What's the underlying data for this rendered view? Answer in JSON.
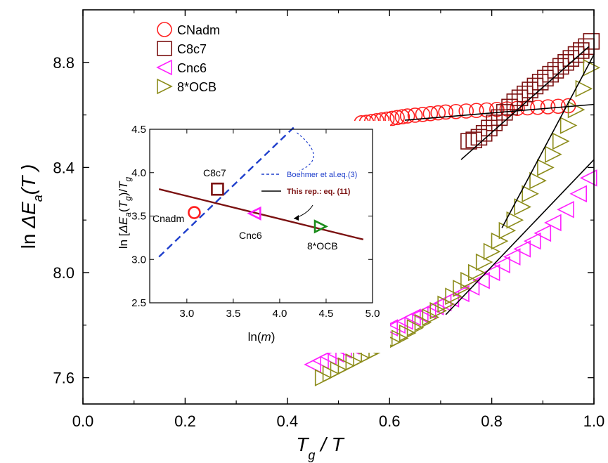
{
  "chart_data": [
    {
      "type": "scatter",
      "xlabel_main": "T",
      "xlabel_sub": "g",
      "xlabel_tail": "/ T",
      "ylabel_main": "ln ΔE",
      "ylabel_sub": "a",
      "ylabel_tail": "(T )",
      "xlim": [
        0.0,
        1.0
      ],
      "ylim": [
        7.5,
        9.0
      ],
      "xticks": [
        0.0,
        0.2,
        0.4,
        0.6,
        0.8,
        1.0
      ],
      "xtick_labels": [
        "0.0",
        "0.2",
        "0.4",
        "0.6",
        "0.8",
        "1.0"
      ],
      "yticks": [
        7.6,
        8.0,
        8.4,
        8.8
      ],
      "ytick_labels": [
        "7.6",
        "8.0",
        "8.4",
        "8.8"
      ],
      "legend_position": "top-left",
      "series": [
        {
          "name": "CNadm",
          "marker": "circle",
          "color": "#ff2020",
          "x": [
            0.545,
            0.555,
            0.565,
            0.575,
            0.585,
            0.595,
            0.605,
            0.615,
            0.625,
            0.635,
            0.65,
            0.665,
            0.68,
            0.695,
            0.71,
            0.73,
            0.75,
            0.77,
            0.79,
            0.81,
            0.83,
            0.85,
            0.87,
            0.89,
            0.91,
            0.93,
            0.95
          ],
          "y": [
            8.57,
            8.572,
            8.575,
            8.578,
            8.581,
            8.584,
            8.587,
            8.59,
            8.593,
            8.596,
            8.599,
            8.602,
            8.605,
            8.608,
            8.611,
            8.613,
            8.615,
            8.617,
            8.619,
            8.621,
            8.623,
            8.625,
            8.627,
            8.629,
            8.631,
            8.633,
            8.635
          ]
        },
        {
          "name": "C8c7",
          "marker": "square",
          "color": "#7b1111",
          "x": [
            0.755,
            0.765,
            0.775,
            0.785,
            0.795,
            0.805,
            0.815,
            0.825,
            0.835,
            0.845,
            0.855,
            0.865,
            0.875,
            0.885,
            0.895,
            0.905,
            0.915,
            0.925,
            0.935,
            0.945,
            0.955,
            0.965,
            0.975,
            0.985,
            0.995
          ],
          "y": [
            8.5,
            8.505,
            8.515,
            8.53,
            8.55,
            8.57,
            8.59,
            8.61,
            8.63,
            8.65,
            8.665,
            8.68,
            8.695,
            8.71,
            8.725,
            8.74,
            8.755,
            8.77,
            8.785,
            8.8,
            8.815,
            8.83,
            8.845,
            8.86,
            8.88
          ]
        },
        {
          "name": "Cnc6",
          "marker": "triangle-left",
          "color": "#ff20ff",
          "x": [
            0.45,
            0.465,
            0.48,
            0.495,
            0.51,
            0.525,
            0.54,
            0.555,
            0.57,
            0.585,
            0.6,
            0.615,
            0.63,
            0.645,
            0.66,
            0.675,
            0.69,
            0.705,
            0.72,
            0.74,
            0.76,
            0.78,
            0.8,
            0.82,
            0.84,
            0.86,
            0.88,
            0.9,
            0.92,
            0.945,
            0.97,
            0.99
          ],
          "y": [
            7.65,
            7.665,
            7.68,
            7.69,
            7.705,
            7.72,
            7.735,
            7.75,
            7.76,
            7.775,
            7.79,
            7.8,
            7.815,
            7.83,
            7.84,
            7.855,
            7.87,
            7.885,
            7.9,
            7.92,
            7.945,
            7.97,
            8.0,
            8.03,
            8.06,
            8.09,
            8.12,
            8.15,
            8.19,
            8.24,
            8.3,
            8.36
          ]
        },
        {
          "name": "8*OCB",
          "marker": "triangle-right",
          "color": "#8c8c1a",
          "x": [
            0.47,
            0.485,
            0.5,
            0.515,
            0.53,
            0.545,
            0.56,
            0.575,
            0.59,
            0.605,
            0.62,
            0.635,
            0.65,
            0.665,
            0.68,
            0.695,
            0.71,
            0.725,
            0.74,
            0.755,
            0.77,
            0.785,
            0.8,
            0.815,
            0.83,
            0.845,
            0.86,
            0.875,
            0.89,
            0.905,
            0.92,
            0.935,
            0.95,
            0.965,
            0.98,
            0.995
          ],
          "y": [
            7.6,
            7.615,
            7.63,
            7.645,
            7.66,
            7.675,
            7.69,
            7.705,
            7.72,
            7.735,
            7.75,
            7.77,
            7.79,
            7.81,
            7.83,
            7.855,
            7.88,
            7.91,
            7.94,
            7.97,
            8.0,
            8.04,
            8.08,
            8.12,
            8.16,
            8.2,
            8.25,
            8.3,
            8.35,
            8.4,
            8.45,
            8.5,
            8.56,
            8.62,
            8.7,
            8.78
          ]
        }
      ],
      "fit_lines": [
        {
          "color": "#000000",
          "x": [
            0.63,
            1.0
          ],
          "y": [
            8.58,
            8.64
          ]
        },
        {
          "color": "#000000",
          "x": [
            0.74,
            0.99
          ],
          "y": [
            8.43,
            8.86
          ]
        },
        {
          "color": "#000000",
          "x": [
            0.71,
            1.0
          ],
          "y": [
            7.84,
            8.43
          ]
        },
        {
          "color": "#000000",
          "x": [
            0.82,
            1.0
          ],
          "y": [
            8.17,
            8.83
          ]
        }
      ]
    },
    {
      "type": "scatter",
      "placement": "inset",
      "xlabel_main": "ln(",
      "xlabel_italic": "m",
      "xlabel_tail": ")",
      "ylabel_text": "ln [ΔE",
      "ylabel_sub1": "a",
      "ylabel_mid": "(T",
      "ylabel_sub2": "g",
      "ylabel_end": ")/T",
      "ylabel_sub3": "g",
      "xlim": [
        2.6,
        5.0
      ],
      "ylim": [
        2.5,
        4.5
      ],
      "xticks": [
        3.0,
        3.5,
        4.0,
        4.5,
        5.0
      ],
      "xtick_labels": [
        "3.0",
        "3.5",
        "4.0",
        "4.5",
        "5.0"
      ],
      "yticks": [
        2.5,
        3.0,
        3.5,
        4.0,
        4.5
      ],
      "ytick_labels": [
        "2.5",
        "3.0",
        "3.5",
        "4.0",
        "4.5"
      ],
      "points": [
        {
          "label": "Cnadm",
          "marker": "circle",
          "color": "#ff2020",
          "x": 3.08,
          "y": 3.54
        },
        {
          "label": "C8c7",
          "marker": "square",
          "color": "#7b1111",
          "x": 3.33,
          "y": 3.81
        },
        {
          "label": "Cnc6",
          "marker": "triangle-left",
          "color": "#ff20ff",
          "x": 3.73,
          "y": 3.53
        },
        {
          "label": "8*OCB",
          "marker": "triangle-right",
          "color": "#1a8c1a",
          "x": 4.44,
          "y": 3.38
        }
      ],
      "lines": [
        {
          "name": "Boehmer et al.eq.(3)",
          "style": "dashed",
          "color": "#1f3fcc",
          "x": [
            2.7,
            4.15
          ],
          "y": [
            3.03,
            4.52
          ]
        },
        {
          "name": "This rep.:  eq. (11)",
          "style": "solid",
          "color": "#7b1111",
          "x": [
            2.7,
            4.9
          ],
          "y": [
            3.81,
            3.23
          ]
        }
      ],
      "legend": [
        {
          "label": "Boehmer et al.eq.(3)",
          "text_color": "#1f3fcc",
          "line_color": "#1f3fcc",
          "style": "dashed"
        },
        {
          "label": "This rep.:  eq. (11)",
          "text_color": "#7b1111",
          "line_color": "#000000",
          "style": "solid"
        }
      ]
    }
  ]
}
